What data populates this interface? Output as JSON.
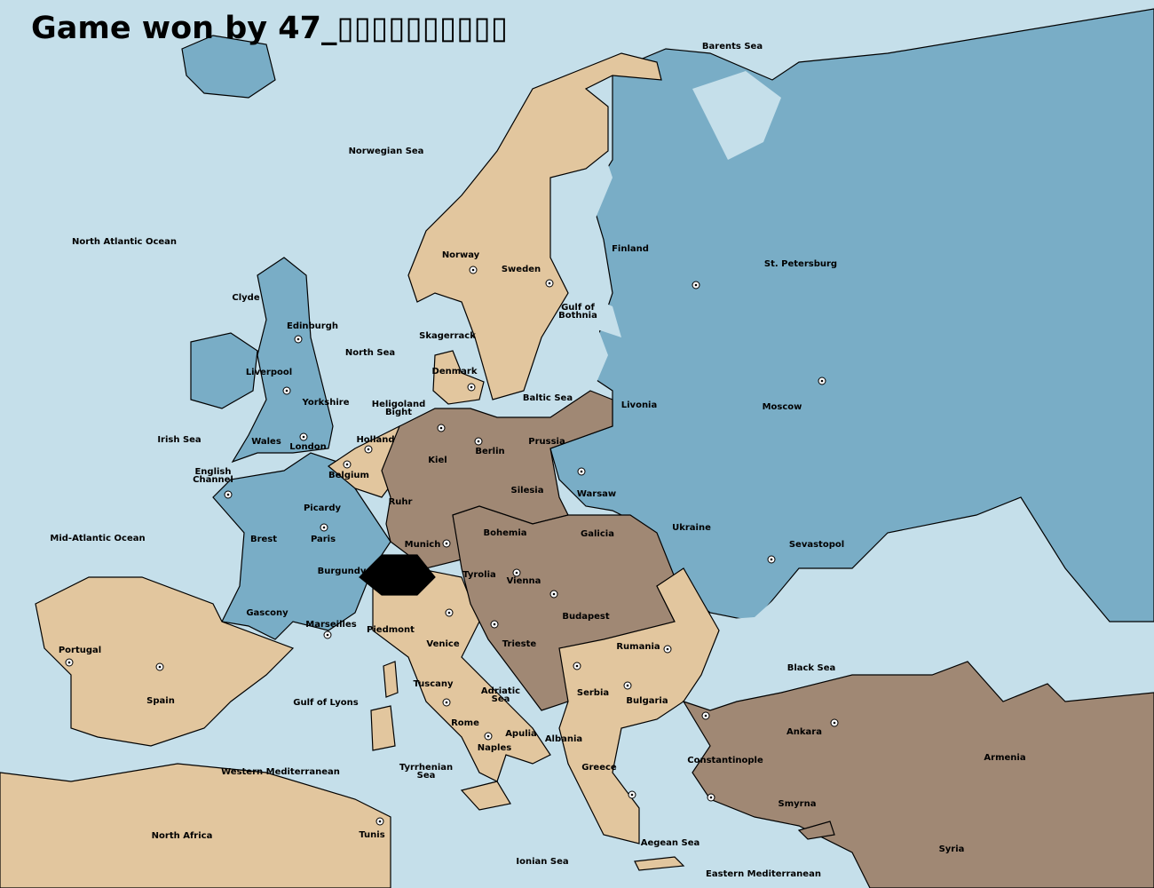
{
  "title": "Game won by 47_▯▯▯▯▯▯▯▯▯▯",
  "colors": {
    "sea": "#c5dfea",
    "blue_power": "#79adc6",
    "tan_power": "#e2c69e",
    "brown_power": "#a08874",
    "switzerland": "#000000"
  },
  "labels": [
    [
      "Barents Sea"
    ],
    [
      "Norwegian Sea"
    ],
    [
      "North Atlantic Ocean"
    ],
    [
      "Norway"
    ],
    [
      "Sweden"
    ],
    [
      "Finland"
    ],
    [
      "St. Petersburg"
    ],
    [
      "Clyde"
    ],
    [
      "Edinburgh"
    ],
    [
      "Gulf of",
      "Bothnia"
    ],
    [
      "Skagerrack"
    ],
    [
      "North Sea"
    ],
    [
      "Liverpool"
    ],
    [
      "Denmark"
    ],
    [
      "Yorkshire"
    ],
    [
      "Heligoland",
      "Bight"
    ],
    [
      "Baltic Sea"
    ],
    [
      "Livonia"
    ],
    [
      "Moscow"
    ],
    [
      "Irish Sea"
    ],
    [
      "Wales"
    ],
    [
      "Holland"
    ],
    [
      "Prussia"
    ],
    [
      "London"
    ],
    [
      "Berlin"
    ],
    [
      "Kiel"
    ],
    [
      "English",
      "Channel"
    ],
    [
      "Belgium"
    ],
    [
      "Silesia"
    ],
    [
      "Warsaw"
    ],
    [
      "Ruhr"
    ],
    [
      "Picardy"
    ],
    [
      "Ukraine"
    ],
    [
      "Bohemia"
    ],
    [
      "Galicia"
    ],
    [
      "Mid-Atlantic Ocean"
    ],
    [
      "Brest"
    ],
    [
      "Paris"
    ],
    [
      "Munich"
    ],
    [
      "Sevastopol"
    ],
    [
      "Burgundy"
    ],
    [
      "Tyrolia"
    ],
    [
      "Vienna"
    ],
    [
      "Gascony"
    ],
    [
      "Budapest"
    ],
    [
      "Marseilles"
    ],
    [
      "Piedmont"
    ],
    [
      "Portugal"
    ],
    [
      "Venice"
    ],
    [
      "Trieste"
    ],
    [
      "Rumania"
    ],
    [
      "Black Sea"
    ],
    [
      "Tuscany"
    ],
    [
      "Serbia"
    ],
    [
      "Adriatic",
      "Sea"
    ],
    [
      "Spain"
    ],
    [
      "Gulf of Lyons"
    ],
    [
      "Bulgaria"
    ],
    [
      "Rome"
    ],
    [
      "Apulia"
    ],
    [
      "Ankara"
    ],
    [
      "Albania"
    ],
    [
      "Naples"
    ],
    [
      "Armenia"
    ],
    [
      "Constantinople"
    ],
    [
      "Greece"
    ],
    [
      "Tyrrhenian",
      "Sea"
    ],
    [
      "Western Mediterranean"
    ],
    [
      "Smyrna"
    ],
    [
      "North Africa"
    ],
    [
      "Tunis"
    ],
    [
      "Aegean Sea"
    ],
    [
      "Syria"
    ],
    [
      "Ionian Sea"
    ],
    [
      "Eastern Mediterranean"
    ]
  ]
}
